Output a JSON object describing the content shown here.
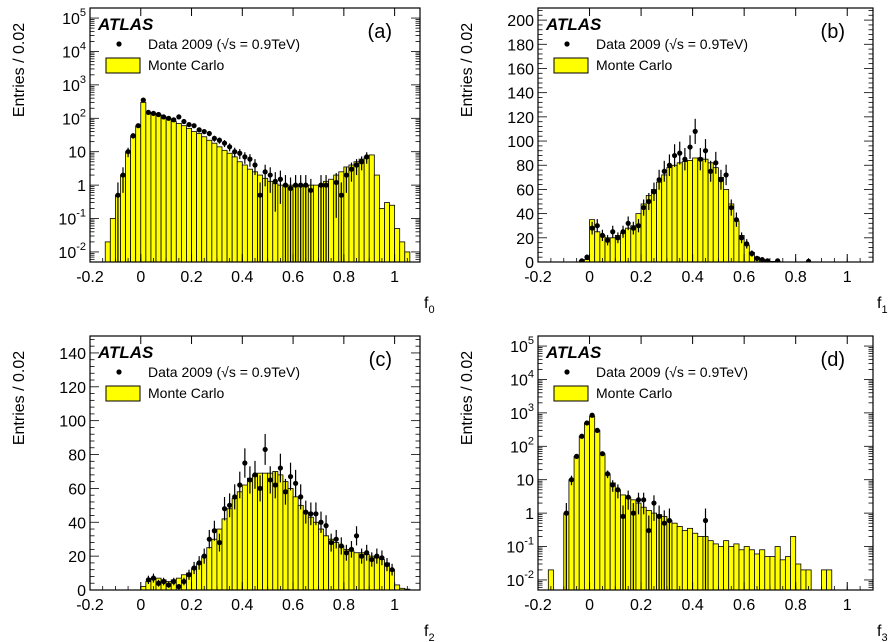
{
  "figure": {
    "experiment_label": "ATLAS",
    "legend_data": "Data 2009 (√s = 0.9TeV)",
    "legend_mc": "Monte Carlo",
    "mc_color": "#ffff00",
    "ylabel": "Entries / 0.02"
  },
  "chart_data": [
    {
      "type": "bar",
      "panel": "(a)",
      "xlabel": "f0",
      "ylabel": "Entries / 0.02",
      "xlim": [
        -0.2,
        1.1
      ],
      "yscale": "log",
      "ylim": [
        0.005,
        200000
      ],
      "xticks": [
        -0.2,
        0,
        0.2,
        0.4,
        0.6,
        0.8,
        1
      ],
      "xtick_labels": [
        "-0.2",
        "0",
        "0.2",
        "0.4",
        "0.6",
        "0.8",
        "1"
      ],
      "yticks": [
        0.01,
        0.1,
        1,
        10,
        100,
        1000,
        10000,
        100000
      ],
      "ytick_labels": [
        {
          "base": "10",
          "exp": "-2"
        },
        {
          "base": "10",
          "exp": "-1"
        },
        {
          "base": "1",
          "exp": ""
        },
        {
          "base": "10",
          "exp": ""
        },
        {
          "base": "10",
          "exp": "2"
        },
        {
          "base": "10",
          "exp": "3"
        },
        {
          "base": "10",
          "exp": "4"
        },
        {
          "base": "10",
          "exp": "5"
        }
      ],
      "legend": "top-left",
      "mc": {
        "name": "Monte Carlo",
        "bin_width": 0.02,
        "x": [
          -0.14,
          -0.12,
          -0.1,
          -0.08,
          -0.06,
          -0.04,
          -0.02,
          0,
          0.02,
          0.04,
          0.06,
          0.08,
          0.1,
          0.12,
          0.14,
          0.16,
          0.18,
          0.2,
          0.22,
          0.24,
          0.26,
          0.28,
          0.3,
          0.32,
          0.34,
          0.36,
          0.38,
          0.4,
          0.42,
          0.44,
          0.46,
          0.48,
          0.5,
          0.52,
          0.54,
          0.56,
          0.58,
          0.6,
          0.62,
          0.64,
          0.66,
          0.68,
          0.7,
          0.72,
          0.74,
          0.76,
          0.78,
          0.8,
          0.82,
          0.84,
          0.86,
          0.88,
          0.9,
          0.92,
          0.94,
          0.96,
          0.98,
          1,
          1.02,
          1.04
        ],
        "values": [
          0.02,
          0.1,
          0.5,
          2,
          10,
          30,
          60,
          300,
          150,
          140,
          130,
          110,
          95,
          80,
          70,
          60,
          50,
          40,
          35,
          28,
          22,
          18,
          14,
          11,
          9,
          7,
          5,
          4,
          3,
          2.5,
          2,
          1.6,
          1.3,
          1.1,
          1,
          1,
          1,
          1,
          1,
          1,
          1,
          1,
          1,
          1.3,
          1.5,
          2,
          2.5,
          3.5,
          4,
          5,
          6,
          7,
          8,
          2,
          0.2,
          0.3,
          0.25,
          0.05,
          0.02,
          0.01
        ]
      },
      "data": {
        "name": "Data 2009 (√s = 0.9TeV)",
        "x": [
          -0.09,
          -0.07,
          -0.05,
          -0.03,
          -0.01,
          0.01,
          0.03,
          0.05,
          0.07,
          0.09,
          0.11,
          0.13,
          0.15,
          0.17,
          0.19,
          0.21,
          0.23,
          0.25,
          0.27,
          0.29,
          0.31,
          0.33,
          0.35,
          0.37,
          0.39,
          0.41,
          0.43,
          0.45,
          0.47,
          0.49,
          0.51,
          0.53,
          0.55,
          0.57,
          0.59,
          0.61,
          0.63,
          0.65,
          0.67,
          0.71,
          0.73,
          0.77,
          0.79,
          0.81,
          0.83,
          0.85,
          0.87,
          0.89
        ],
        "y": [
          0.5,
          2,
          10,
          30,
          60,
          350,
          150,
          140,
          130,
          110,
          100,
          90,
          110,
          80,
          65,
          60,
          45,
          40,
          35,
          25,
          22,
          18,
          14,
          10,
          9,
          7,
          6,
          4,
          0.5,
          2.5,
          2,
          1.3,
          1.5,
          1,
          0.8,
          1,
          1,
          1,
          0.7,
          1,
          1,
          1.2,
          0.5,
          2,
          3,
          4,
          5,
          7
        ]
      }
    },
    {
      "type": "bar",
      "panel": "(b)",
      "xlabel": "f1",
      "ylabel": "Entries / 0.02",
      "xlim": [
        -0.2,
        1.1
      ],
      "yscale": "linear",
      "ylim": [
        0,
        210
      ],
      "xticks": [
        -0.2,
        0,
        0.2,
        0.4,
        0.6,
        0.8,
        1
      ],
      "xtick_labels": [
        "-0.2",
        "0",
        "0.2",
        "0.4",
        "0.6",
        "0.8",
        "1"
      ],
      "yticks": [
        0,
        20,
        40,
        60,
        80,
        100,
        120,
        140,
        160,
        180,
        200
      ],
      "ytick_labels": [
        "0",
        "20",
        "40",
        "60",
        "80",
        "100",
        "120",
        "140",
        "160",
        "180",
        "200"
      ],
      "legend": "top-left",
      "mc": {
        "name": "Monte Carlo",
        "bin_width": 0.02,
        "x": [
          -0.04,
          -0.02,
          0,
          0.02,
          0.04,
          0.06,
          0.08,
          0.1,
          0.12,
          0.14,
          0.16,
          0.18,
          0.2,
          0.22,
          0.24,
          0.26,
          0.28,
          0.3,
          0.32,
          0.34,
          0.36,
          0.38,
          0.4,
          0.42,
          0.44,
          0.46,
          0.48,
          0.5,
          0.52,
          0.54,
          0.56,
          0.58,
          0.6,
          0.62,
          0.64,
          0.66,
          0.68,
          0.7,
          0.72,
          0.74
        ],
        "values": [
          1,
          2,
          35,
          25,
          22,
          20,
          20,
          22,
          24,
          28,
          30,
          40,
          48,
          55,
          60,
          66,
          72,
          78,
          80,
          82,
          83,
          84,
          86,
          86,
          85,
          82,
          78,
          70,
          60,
          48,
          34,
          22,
          14,
          8,
          4,
          2,
          1,
          0.5,
          0.3,
          0.1
        ]
      },
      "data": {
        "name": "Data 2009 (√s = 0.9TeV)",
        "x": [
          -0.03,
          -0.01,
          0.01,
          0.03,
          0.05,
          0.07,
          0.09,
          0.11,
          0.13,
          0.15,
          0.17,
          0.19,
          0.21,
          0.23,
          0.25,
          0.27,
          0.29,
          0.31,
          0.33,
          0.35,
          0.37,
          0.39,
          0.41,
          0.43,
          0.45,
          0.47,
          0.49,
          0.51,
          0.53,
          0.55,
          0.57,
          0.59,
          0.61,
          0.63,
          0.65,
          0.67,
          0.69,
          0.73,
          0.85
        ],
        "y": [
          1,
          4,
          28,
          30,
          22,
          18,
          25,
          20,
          25,
          32,
          28,
          30,
          45,
          50,
          58,
          68,
          75,
          80,
          88,
          90,
          85,
          95,
          108,
          85,
          92,
          75,
          82,
          68,
          72,
          45,
          35,
          20,
          15,
          7,
          3,
          2,
          1,
          1,
          0.5
        ]
      }
    },
    {
      "type": "bar",
      "panel": "(c)",
      "xlabel": "f2",
      "ylabel": "Entries / 0.02",
      "xlim": [
        -0.2,
        1.1
      ],
      "yscale": "linear",
      "ylim": [
        0,
        150
      ],
      "xticks": [
        -0.2,
        0,
        0.2,
        0.4,
        0.6,
        0.8,
        1
      ],
      "xtick_labels": [
        "-0.2",
        "0",
        "0.2",
        "0.4",
        "0.6",
        "0.8",
        "1"
      ],
      "yticks": [
        0,
        20,
        40,
        60,
        80,
        100,
        120,
        140
      ],
      "ytick_labels": [
        "0",
        "20",
        "40",
        "60",
        "80",
        "100",
        "120",
        "140"
      ],
      "legend": "top-left",
      "mc": {
        "name": "Monte Carlo",
        "bin_width": 0.02,
        "x": [
          0,
          0.02,
          0.04,
          0.06,
          0.08,
          0.1,
          0.12,
          0.14,
          0.16,
          0.18,
          0.2,
          0.22,
          0.24,
          0.26,
          0.28,
          0.3,
          0.32,
          0.34,
          0.36,
          0.38,
          0.4,
          0.42,
          0.44,
          0.46,
          0.48,
          0.5,
          0.52,
          0.54,
          0.56,
          0.58,
          0.6,
          0.62,
          0.64,
          0.66,
          0.68,
          0.7,
          0.72,
          0.74,
          0.76,
          0.78,
          0.8,
          0.82,
          0.84,
          0.86,
          0.88,
          0.9,
          0.92,
          0.94,
          0.96,
          0.98,
          1,
          1.02,
          1.04
        ],
        "values": [
          2,
          5,
          7,
          7,
          6,
          5,
          6,
          7,
          9,
          10,
          13,
          16,
          20,
          25,
          30,
          36,
          42,
          48,
          54,
          58,
          62,
          66,
          68,
          69,
          69,
          69,
          70,
          68,
          64,
          60,
          55,
          50,
          46,
          43,
          40,
          36,
          32,
          30,
          28,
          26,
          24,
          23,
          22,
          22,
          21,
          20,
          19,
          18,
          16,
          12,
          3,
          1,
          0.5
        ]
      },
      "data": {
        "name": "Data 2009 (√s = 0.9TeV)",
        "x": [
          0.03,
          0.05,
          0.07,
          0.09,
          0.11,
          0.13,
          0.15,
          0.17,
          0.19,
          0.21,
          0.23,
          0.25,
          0.27,
          0.29,
          0.31,
          0.33,
          0.35,
          0.37,
          0.39,
          0.41,
          0.43,
          0.45,
          0.47,
          0.49,
          0.51,
          0.53,
          0.55,
          0.57,
          0.59,
          0.61,
          0.63,
          0.65,
          0.67,
          0.69,
          0.71,
          0.73,
          0.75,
          0.77,
          0.79,
          0.81,
          0.83,
          0.85,
          0.87,
          0.89,
          0.91,
          0.93,
          0.95,
          0.97,
          0.99
        ],
        "y": [
          6,
          7,
          4,
          5,
          3,
          5,
          2,
          5,
          9,
          13,
          16,
          20,
          30,
          35,
          28,
          48,
          50,
          55,
          62,
          75,
          65,
          68,
          60,
          83,
          65,
          62,
          72,
          58,
          67,
          63,
          55,
          46,
          45,
          45,
          40,
          38,
          28,
          30,
          26,
          22,
          24,
          32,
          20,
          22,
          18,
          20,
          19,
          15,
          12
        ]
      }
    },
    {
      "type": "bar",
      "panel": "(d)",
      "xlabel": "f3",
      "ylabel": "Entries / 0.02",
      "xlim": [
        -0.2,
        1.1
      ],
      "yscale": "log",
      "ylim": [
        0.005,
        200000
      ],
      "xticks": [
        -0.2,
        0,
        0.2,
        0.4,
        0.6,
        0.8,
        1
      ],
      "xtick_labels": [
        "-0.2",
        "0",
        "0.2",
        "0.4",
        "0.6",
        "0.8",
        "1"
      ],
      "yticks": [
        0.01,
        0.1,
        1,
        10,
        100,
        1000,
        10000,
        100000
      ],
      "ytick_labels": [
        {
          "base": "10",
          "exp": "-2"
        },
        {
          "base": "10",
          "exp": "-1"
        },
        {
          "base": "1",
          "exp": ""
        },
        {
          "base": "10",
          "exp": ""
        },
        {
          "base": "10",
          "exp": "2"
        },
        {
          "base": "10",
          "exp": "3"
        },
        {
          "base": "10",
          "exp": "4"
        },
        {
          "base": "10",
          "exp": "5"
        }
      ],
      "legend": "top-left",
      "mc": {
        "name": "Monte Carlo",
        "bin_width": 0.02,
        "x": [
          -0.16,
          -0.1,
          -0.08,
          -0.06,
          -0.04,
          -0.02,
          0,
          0.02,
          0.04,
          0.06,
          0.08,
          0.1,
          0.12,
          0.14,
          0.16,
          0.18,
          0.2,
          0.22,
          0.24,
          0.26,
          0.28,
          0.3,
          0.32,
          0.34,
          0.36,
          0.38,
          0.4,
          0.42,
          0.44,
          0.46,
          0.48,
          0.5,
          0.52,
          0.54,
          0.56,
          0.58,
          0.6,
          0.62,
          0.64,
          0.66,
          0.68,
          0.7,
          0.72,
          0.74,
          0.76,
          0.78,
          0.8,
          0.82,
          0.84,
          0.9,
          0.92
        ],
        "values": [
          0.02,
          1,
          10,
          50,
          200,
          500,
          800,
          300,
          60,
          15,
          8,
          5,
          3.5,
          3,
          2.5,
          2,
          1.5,
          1.2,
          1,
          0.9,
          0.8,
          0.6,
          0.5,
          0.4,
          0.3,
          0.35,
          0.25,
          0.2,
          0.2,
          0.15,
          0.12,
          0.1,
          0.15,
          0.1,
          0.12,
          0.08,
          0.1,
          0.08,
          0.06,
          0.08,
          0.05,
          0.05,
          0.1,
          0.04,
          0.05,
          0.2,
          0.03,
          0.02,
          0.02,
          0.02,
          0.02
        ]
      },
      "data": {
        "name": "Data 2009 (√s = 0.9TeV)",
        "x": [
          -0.09,
          -0.07,
          -0.05,
          -0.03,
          -0.01,
          0.01,
          0.03,
          0.05,
          0.07,
          0.09,
          0.11,
          0.13,
          0.15,
          0.17,
          0.19,
          0.21,
          0.23,
          0.25,
          0.27,
          0.29,
          0.31,
          0.45
        ],
        "y": [
          1,
          10,
          50,
          200,
          500,
          850,
          300,
          60,
          15,
          7,
          5,
          0.8,
          3,
          1,
          2.5,
          2.5,
          0.3,
          2,
          0.8,
          0.5,
          0.6,
          0.6
        ]
      }
    }
  ]
}
